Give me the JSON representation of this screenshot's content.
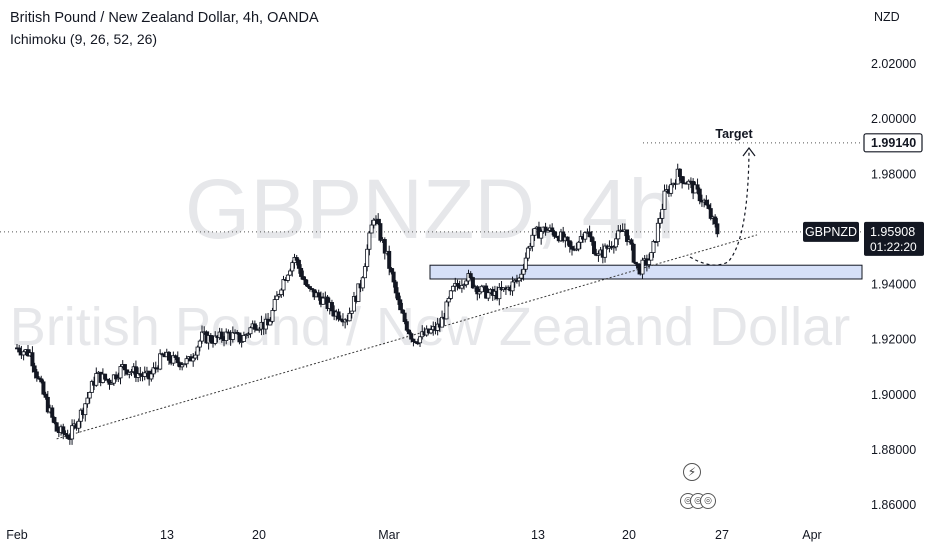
{
  "header": {
    "title": "British Pound / New Zealand Dollar, 4h, OANDA",
    "indicator": "Ichimoku (9, 26, 52, 26)"
  },
  "watermark": {
    "symbol": "GBPNZD, 4h",
    "name": "British Pound / New Zealand Dollar"
  },
  "axis": {
    "currency": "NZD",
    "price_labels": [
      "2.02000",
      "2.00000",
      "1.98000",
      "1.94000",
      "1.92000",
      "1.90000",
      "1.88000",
      "1.86000"
    ],
    "date_labels": [
      "Feb",
      "13",
      "20",
      "Mar",
      "13",
      "20",
      "27",
      "Apr"
    ]
  },
  "markers": {
    "target_text": "Target",
    "target_price": "1.99140",
    "symbol_tag": "GBPNZD",
    "last_price": "1.95908",
    "countdown": "01:22:20"
  },
  "colors": {
    "up": "#ffffff",
    "down": "#131722",
    "zone_fill": "#c8d6f5",
    "zone_stroke": "#131722",
    "price_tag_bg": "#131722"
  },
  "chart_data": {
    "type": "candlestick",
    "title": "British Pound / New Zealand Dollar, 4h, OANDA",
    "y_unit": "NZD",
    "ylim": [
      1.855,
      2.035
    ],
    "x_range": [
      "2023-02-01",
      "2023-04-05"
    ],
    "xticks": [
      "Feb",
      "13",
      "20",
      "Mar",
      "13",
      "20",
      "27",
      "Apr"
    ],
    "close_path": [
      [
        "2023-02-01",
        1.917
      ],
      [
        "2023-02-02",
        1.915
      ],
      [
        "2023-02-03",
        1.9
      ],
      [
        "2023-02-04",
        1.887
      ],
      [
        "2023-02-05",
        1.885
      ],
      [
        "2023-02-06",
        1.895
      ],
      [
        "2023-02-07",
        1.907
      ],
      [
        "2023-02-08",
        1.905
      ],
      [
        "2023-02-09",
        1.91
      ],
      [
        "2023-02-10",
        1.908
      ],
      [
        "2023-02-11",
        1.906
      ],
      [
        "2023-02-12",
        1.914
      ],
      [
        "2023-02-13",
        1.912
      ],
      [
        "2023-02-14",
        1.912
      ],
      [
        "2023-02-15",
        1.921
      ],
      [
        "2023-02-16",
        1.92
      ],
      [
        "2023-02-17",
        1.922
      ],
      [
        "2023-02-18",
        1.92
      ],
      [
        "2023-02-19",
        1.926
      ],
      [
        "2023-02-20",
        1.925
      ],
      [
        "2023-02-21",
        1.94
      ],
      [
        "2023-02-22",
        1.95
      ],
      [
        "2023-02-23",
        1.938
      ],
      [
        "2023-02-24",
        1.935
      ],
      [
        "2023-02-25",
        1.93
      ],
      [
        "2023-02-26",
        1.928
      ],
      [
        "2023-02-27",
        1.94
      ],
      [
        "2023-02-28",
        1.965
      ],
      [
        "2023-03-01",
        1.95
      ],
      [
        "2023-03-02",
        1.93
      ],
      [
        "2023-03-03",
        1.92
      ],
      [
        "2023-03-04",
        1.922
      ],
      [
        "2023-03-05",
        1.925
      ],
      [
        "2023-03-06",
        1.938
      ],
      [
        "2023-03-07",
        1.943
      ],
      [
        "2023-03-08",
        1.938
      ],
      [
        "2023-03-09",
        1.936
      ],
      [
        "2023-03-10",
        1.938
      ],
      [
        "2023-03-11",
        1.942
      ],
      [
        "2023-03-12",
        1.958
      ],
      [
        "2023-03-13",
        1.96
      ],
      [
        "2023-03-14",
        1.958
      ],
      [
        "2023-03-15",
        1.952
      ],
      [
        "2023-03-16",
        1.96
      ],
      [
        "2023-03-17",
        1.95
      ],
      [
        "2023-03-18",
        1.955
      ],
      [
        "2023-03-19",
        1.96
      ],
      [
        "2023-03-20",
        1.945
      ],
      [
        "2023-03-21",
        1.95
      ],
      [
        "2023-03-22",
        1.972
      ],
      [
        "2023-03-23",
        1.98
      ],
      [
        "2023-03-24",
        1.976
      ],
      [
        "2023-03-25",
        1.97
      ],
      [
        "2023-03-26",
        1.959
      ]
    ],
    "support_zone": [
      1.942,
      1.947
    ],
    "trendline": [
      [
        "2023-02-04",
        1.884
      ],
      [
        "2023-03-29",
        1.958
      ]
    ],
    "target_level": 1.9914,
    "last_price": 1.95908
  }
}
